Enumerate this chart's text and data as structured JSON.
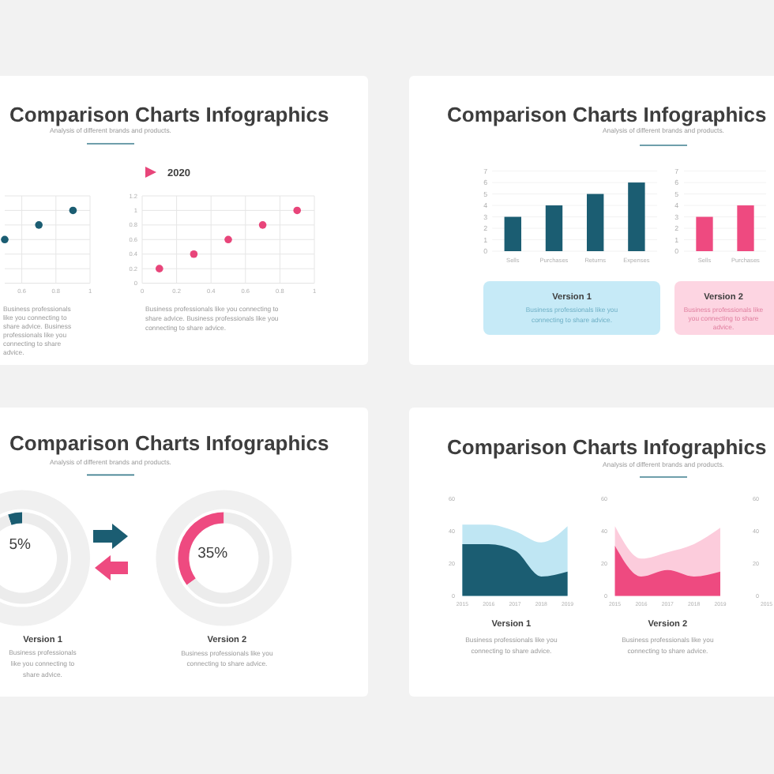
{
  "chart_data": [
    {
      "type": "other",
      "title": "Comparison Charts Infographics",
      "subtitle": "Analysis of different brands and products."
    },
    {
      "type": "scatter",
      "x": [
        0.5,
        0.7,
        0.9
      ],
      "values": [
        0.6,
        0.8,
        1
      ],
      "color": "#1b5d72",
      "xlim": [
        0.5,
        1
      ],
      "ylim": [
        0,
        1.2
      ],
      "xticks": [
        0.6,
        0.8,
        1
      ],
      "yticks": [
        0,
        0.2,
        0.4,
        0.6,
        0.8,
        1,
        1.2
      ],
      "tick_labels": "x",
      "grid": true,
      "marker": "circle",
      "annotations": [
        "Business professionals like you connecting to share advice. Business professionals like you connecting to share advice."
      ]
    },
    {
      "type": "scatter",
      "title": "2020",
      "x": [
        0.1,
        0.3,
        0.5,
        0.7,
        0.9
      ],
      "values": [
        0.2,
        0.4,
        0.6,
        0.8,
        1
      ],
      "color": "#e8457a",
      "xlim": [
        0,
        1
      ],
      "ylim": [
        0,
        1.2
      ],
      "xticks": [
        0,
        0.2,
        0.4,
        0.6,
        0.8,
        1
      ],
      "yticks": [
        0,
        0.2,
        0.4,
        0.6,
        0.8,
        1,
        1.2
      ],
      "grid": true,
      "marker": "circle",
      "annotations": [
        "Business professionals like you connecting to share advice. Business professionals like you connecting to share advice."
      ]
    },
    {
      "type": "other",
      "title": "Comparison Charts Infographics",
      "subtitle": "Analysis of different brands and products."
    },
    {
      "type": "bar",
      "categories": [
        "Sells",
        "Purchases",
        "Returns",
        "Expenses"
      ],
      "values": [
        3,
        4,
        5,
        6
      ],
      "color": "#1b5d72",
      "ylim": [
        0,
        7
      ],
      "yticks": [
        0,
        1,
        2,
        3,
        4,
        5,
        6,
        7
      ],
      "grid": "y",
      "annotations": [
        "Version 1",
        "Business professionals like you connecting to share advice."
      ]
    },
    {
      "type": "bar",
      "categories": [
        "Sells",
        "Purchases"
      ],
      "values": [
        3,
        4
      ],
      "color": "#ee4a80",
      "ylim": [
        0,
        7
      ],
      "yticks": [
        0,
        1,
        2,
        3,
        4,
        5,
        6,
        7
      ],
      "grid": "y",
      "annotations": [
        "Version 2",
        "Business professionals like you connecting to share advice."
      ]
    },
    {
      "type": "other",
      "title": "Comparison Charts Infographics",
      "subtitle": "Analysis of different brands and products."
    },
    {
      "type": "donut",
      "categories": [
        null,
        null
      ],
      "values": [
        5,
        95
      ],
      "colors": [
        "#1b5d72",
        "#ececec"
      ],
      "value_labels": [
        "5%",
        null
      ],
      "annotations": [
        "Version 1",
        "Business professionals like you connecting to share advice."
      ]
    },
    {
      "type": "donut",
      "categories": [
        null,
        null
      ],
      "values": [
        35,
        65
      ],
      "colors": [
        "#ee4a80",
        "#ececec"
      ],
      "value_labels": [
        "35%",
        null
      ],
      "annotations": [
        "Version 2",
        "Business professionals like you connecting to share advice."
      ]
    },
    {
      "type": "other",
      "title": "Comparison Charts Infographics",
      "subtitle": "Analysis of different brands and products."
    },
    {
      "type": "area",
      "categories": [
        "2015",
        "2016",
        "2017",
        "2018",
        "2019"
      ],
      "series": [
        {
          "color": "#bfe6f3",
          "values": [
            44,
            44,
            40,
            33,
            43
          ]
        },
        {
          "color": "#1b5d72",
          "values": [
            32,
            32,
            28,
            12,
            15
          ]
        }
      ],
      "ylim": [
        0,
        60
      ],
      "yticks": [
        0,
        20,
        40,
        60
      ],
      "annotations": [
        "Version 1",
        "Business professionals like you connecting to share advice."
      ]
    },
    {
      "type": "area",
      "categories": [
        "2015",
        "2016",
        "2017",
        "2018",
        "2019"
      ],
      "series": [
        {
          "color": "#fcccdc",
          "values": [
            43,
            23,
            27,
            32,
            42
          ]
        },
        {
          "color": "#ee4a80",
          "values": [
            31,
            12,
            16,
            12,
            15
          ]
        }
      ],
      "ylim": [
        0,
        60
      ],
      "yticks": [
        0,
        20,
        40,
        60
      ],
      "annotations": [
        "Version 2",
        "Business professionals like you connecting to share advice."
      ]
    },
    {
      "type": "area",
      "categories": [
        "2015"
      ],
      "ylim": [
        0,
        60
      ],
      "yticks": [
        0,
        20,
        40,
        60
      ]
    }
  ]
}
